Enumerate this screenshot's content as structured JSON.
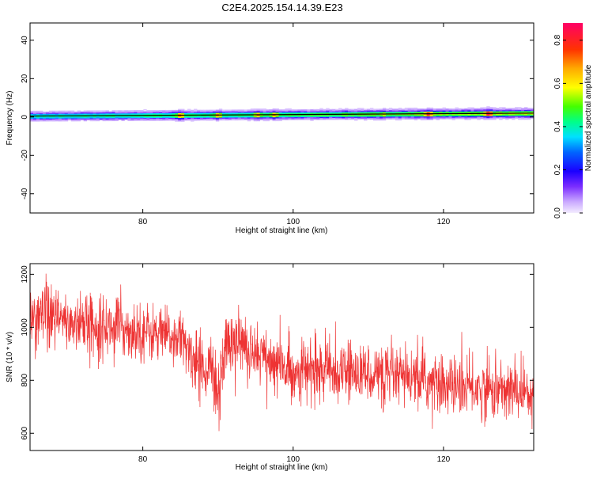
{
  "title": "C2E4.2025.154.14.39.E23",
  "chart_data": [
    {
      "type": "heatmap",
      "xlabel": "Height of straight line (km)",
      "ylabel": "Frequency (Hz)",
      "xlim": [
        65,
        132
      ],
      "ylim": [
        -50,
        49
      ],
      "x_ticks": [
        80,
        100,
        120
      ],
      "y_ticks": [
        40,
        20,
        0,
        -20,
        -40
      ],
      "band": {
        "center_frequency_start": 0.5,
        "center_frequency_end": 2.0,
        "core_half_width": 1.0,
        "halo_half_width": 3.0
      },
      "hotspots": [
        {
          "x": 85,
          "y": 1.2,
          "amplitude": 0.8
        },
        {
          "x": 90,
          "y": 1.2,
          "amplitude": 0.75
        },
        {
          "x": 95.3,
          "y": 1.3,
          "amplitude": 0.75
        },
        {
          "x": 97.5,
          "y": 1.3,
          "amplitude": 0.75
        },
        {
          "x": 112,
          "y": 1.6,
          "amplitude": 0.65
        },
        {
          "x": 118,
          "y": 1.8,
          "amplitude": 0.9
        },
        {
          "x": 126,
          "y": 2.0,
          "amplitude": 0.95
        }
      ],
      "colorbar": {
        "label": "Normalized spectral amplitude",
        "range": [
          0.0,
          0.88
        ],
        "ticks": [
          "0.0",
          "0.2",
          "0.4",
          "0.6",
          "0.8"
        ],
        "tick_values": [
          0.0,
          0.2,
          0.4,
          0.6,
          0.8
        ]
      }
    },
    {
      "type": "line",
      "xlabel": "Height of straight line (km)",
      "ylabel": "SNR (10 * v/v)",
      "xlim": [
        65,
        132
      ],
      "ylim": [
        535,
        1240
      ],
      "x_ticks": [
        80,
        100,
        120
      ],
      "y_ticks": [
        1200,
        1000,
        800,
        600
      ],
      "color": "#ee3333",
      "series": [
        {
          "x": [
            65,
            70,
            75,
            80,
            85,
            87,
            88,
            89,
            90,
            91,
            92,
            95,
            98,
            100,
            105,
            110,
            115,
            120,
            125,
            130,
            132
          ],
          "mean": [
            1040,
            1020,
            1005,
            985,
            955,
            870,
            860,
            840,
            760,
            940,
            950,
            915,
            850,
            835,
            835,
            830,
            805,
            785,
            765,
            760,
            765
          ],
          "spread": [
            60,
            60,
            55,
            55,
            50,
            55,
            55,
            55,
            90,
            60,
            55,
            55,
            60,
            55,
            55,
            55,
            55,
            55,
            55,
            55,
            55
          ]
        }
      ]
    }
  ]
}
